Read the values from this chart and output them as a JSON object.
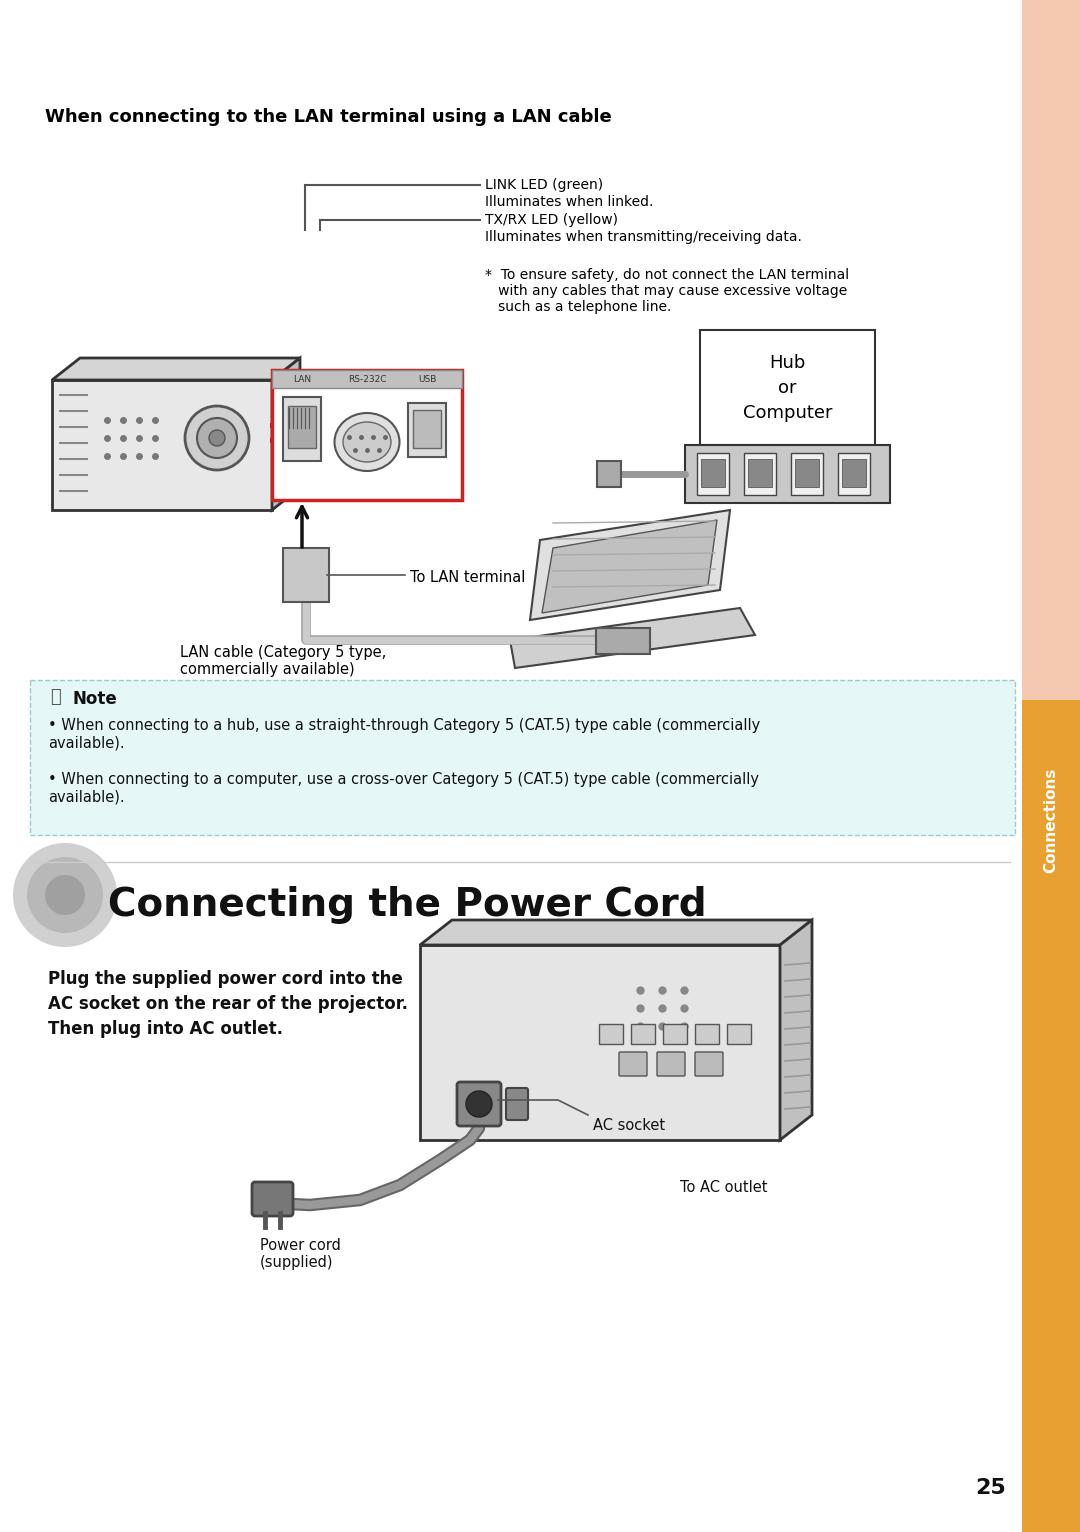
{
  "bg_color": "#ffffff",
  "sidebar_color_top": "#f5c8b0",
  "sidebar_color_bottom": "#e8a030",
  "sidebar_text": "Connections",
  "sidebar_text_color": "#ffffff",
  "page_number": "25",
  "section1_title": "When connecting to the LAN terminal using a LAN cable",
  "label_link_led_1": "LINK LED (green)",
  "label_link_led_2": "Illuminates when linked.",
  "label_txrx_led_1": "TX/RX LED (yellow)",
  "label_txrx_led_2": "Illuminates when transmitting/receiving data.",
  "label_safety_note": "*  To ensure safety, do not connect the LAN terminal\n   with any cables that may cause excessive voltage\n   such as a telephone line.",
  "label_hub": "Hub\nor\nComputer",
  "label_lan_terminal": "To LAN terminal",
  "label_lan_cable": "LAN cable (Category 5 type,\ncommercially available)",
  "note_title": "Note",
  "note_bg": "#e6f7f7",
  "note_border": "#99cccc",
  "note_bullet1": "When connecting to a hub, use a straight-through Category 5 (CAT.5) type cable (commercially\navailable).",
  "note_bullet2": "When connecting to a computer, use a cross-over Category 5 (CAT.5) type cable (commercially\navailable).",
  "section2_title": "Connecting the Power Cord",
  "section2_body": "Plug the supplied power cord into the\nAC socket on the rear of the projector.\nThen plug into AC outlet.",
  "label_ac_socket": "AC socket",
  "label_to_ac_outlet": "To AC outlet",
  "label_power_cord": "Power cord\n(supplied)"
}
